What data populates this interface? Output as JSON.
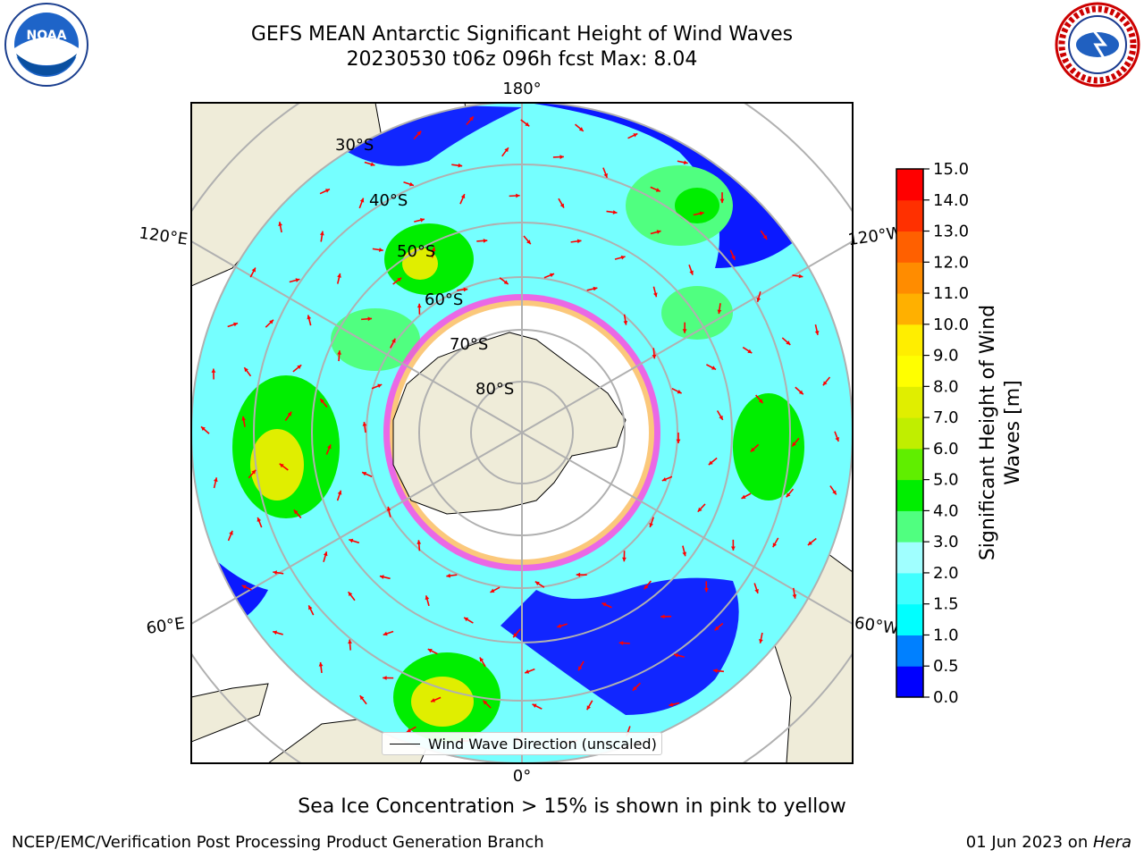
{
  "header": {
    "title_line1": "GEFS MEAN Antarctic Significant Height of Wind Waves",
    "title_line2": "20230530 t06z 096h fcst   Max: 8.04"
  },
  "logos": {
    "left": {
      "icon": "noaa-logo-icon",
      "text": "NOAA"
    },
    "right": {
      "icon": "nws-logo-icon",
      "text": "NATIONAL WEATHER SERVICE"
    }
  },
  "map": {
    "projection": "south-polar-stereographic",
    "longitude_labels": [
      "180°",
      "120°E",
      "120°W",
      "60°E",
      "60°W",
      "0°"
    ],
    "latitude_labels": [
      "30°S",
      "40°S",
      "50°S",
      "60°S",
      "70°S",
      "80°S"
    ],
    "colors": {
      "land": "#efecd9",
      "ice": "#ffffff",
      "arrow": "#ff0000",
      "grid": "#b0b0b0"
    }
  },
  "legend": {
    "label": "Wind Wave Direction (unscaled)"
  },
  "colorbar": {
    "label_line1": "Significant Height of Wind",
    "label_line2": "Waves [m]",
    "ticks": [
      "0.0",
      "0.5",
      "1.0",
      "1.5",
      "2.0",
      "3.0",
      "4.0",
      "5.0",
      "6.0",
      "7.0",
      "8.0",
      "9.0",
      "10.0",
      "11.0",
      "12.0",
      "13.0",
      "14.0",
      "15.0"
    ],
    "colors": [
      "#0000ff",
      "#0080ff",
      "#00ffff",
      "#40ffff",
      "#a0ffff",
      "#50ff80",
      "#00ee00",
      "#60ee00",
      "#c0ee00",
      "#e0ee00",
      "#ffff00",
      "#ffee00",
      "#ffb000",
      "#ff8c00",
      "#ff6000",
      "#ff3000",
      "#ff0000"
    ]
  },
  "notes": {
    "sea_ice": "Sea Ice Concentration > 15% is shown in pink to yellow"
  },
  "footer": {
    "left": "NCEP/EMC/Verification Post Processing Product Generation Branch",
    "date": "01 Jun 2023 on ",
    "machine": "Hera"
  }
}
